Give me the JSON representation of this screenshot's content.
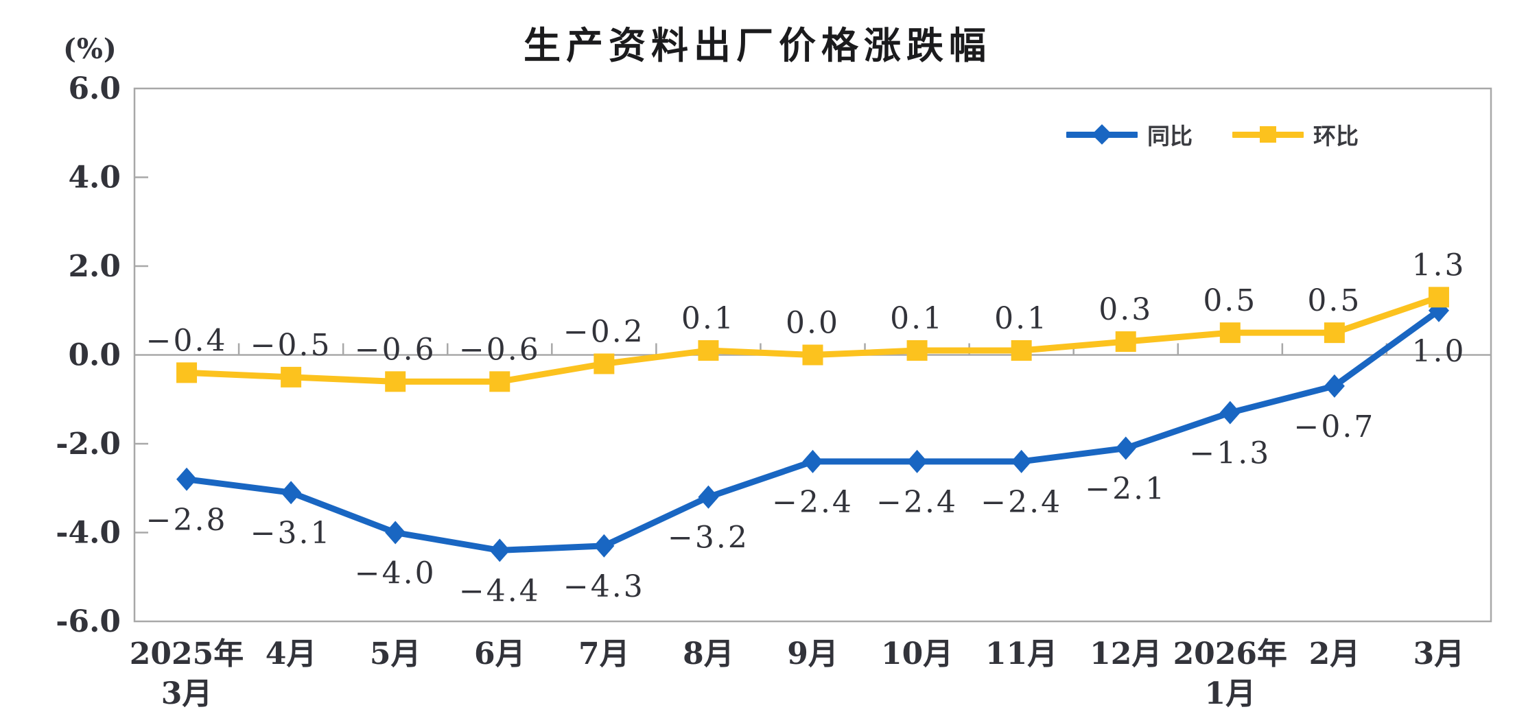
{
  "page": {
    "title": "生产资料出厂价格涨跌幅",
    "unit_label": "(%)"
  },
  "chart_data": {
    "type": "line",
    "title": "生产资料出厂价格涨跌幅",
    "ylabel": "(%)",
    "categories": [
      "2025年3月",
      "4月",
      "5月",
      "6月",
      "7月",
      "8月",
      "9月",
      "10月",
      "11月",
      "12月",
      "2026年1月",
      "2月",
      "3月"
    ],
    "category_display_lines": [
      [
        "2025年",
        "3月"
      ],
      [
        "4月"
      ],
      [
        "5月"
      ],
      [
        "6月"
      ],
      [
        "7月"
      ],
      [
        "8月"
      ],
      [
        "9月"
      ],
      [
        "10月"
      ],
      [
        "11月"
      ],
      [
        "12月"
      ],
      [
        "2026年",
        "1月"
      ],
      [
        "2月"
      ],
      [
        "3月"
      ]
    ],
    "series": [
      {
        "name": "同比",
        "marker": "diamond",
        "color": "#1966C2",
        "label_position": "below",
        "values": [
          -2.8,
          -3.1,
          -4.0,
          -4.4,
          -4.3,
          -3.2,
          -2.4,
          -2.4,
          -2.4,
          -2.1,
          -1.3,
          -0.7,
          1.0
        ]
      },
      {
        "name": "环比",
        "marker": "square",
        "color": "#FCC21E",
        "label_position": "above",
        "values": [
          -0.4,
          -0.5,
          -0.6,
          -0.6,
          -0.2,
          0.1,
          0.0,
          0.1,
          0.1,
          0.3,
          0.5,
          0.5,
          1.3
        ]
      }
    ],
    "ylim": [
      -6.0,
      6.0
    ],
    "yticks": [
      6.0,
      4.0,
      2.0,
      0.0,
      -2.0,
      -4.0,
      -6.0
    ],
    "grid": false,
    "legend_position": "top-right",
    "axis_color": "#A8A8A8",
    "text_color": "#32333A"
  }
}
